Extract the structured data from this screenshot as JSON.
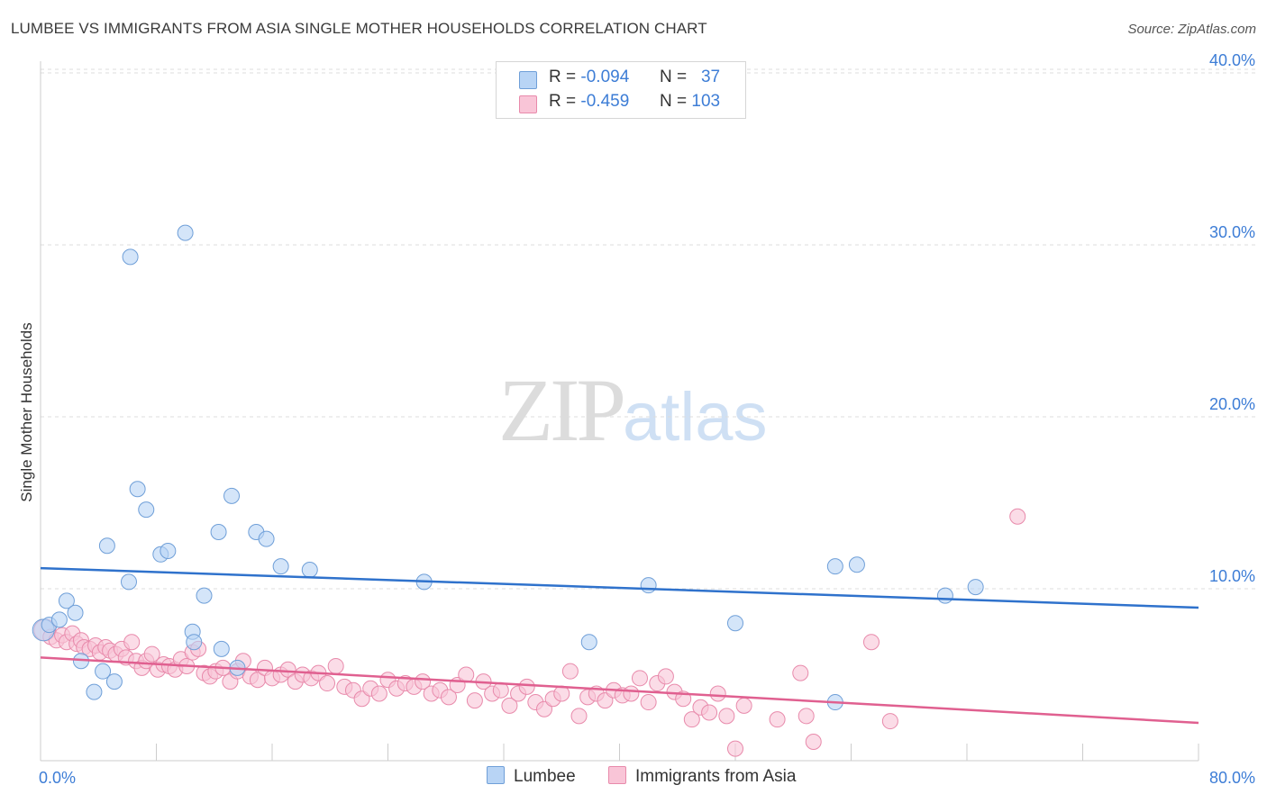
{
  "header": {
    "title": "LUMBEE VS IMMIGRANTS FROM ASIA SINGLE MOTHER HOUSEHOLDS CORRELATION CHART",
    "source": "Source: ZipAtlas.com"
  },
  "watermark": {
    "zip": "ZIP",
    "atlas": "atlas"
  },
  "legend": {
    "rows": [
      {
        "r_label": "R =",
        "r_value": "-0.094",
        "n_label": "N =",
        "n_value": "37",
        "color": "#b8d4f5"
      },
      {
        "r_label": "R =",
        "r_value": "-0.459",
        "n_label": "N =",
        "n_value": "103",
        "color": "#f9c5d7"
      }
    ]
  },
  "bottom_legend": {
    "lumbee": "Lumbee",
    "asia": "Immigrants from Asia"
  },
  "chart_data": {
    "type": "scatter",
    "title": "LUMBEE VS IMMIGRANTS FROM ASIA SINGLE MOTHER HOUSEHOLDS CORRELATION CHART",
    "ylabel": "Single Mother Households",
    "xlabel": "",
    "xlim": [
      0,
      80
    ],
    "ylim": [
      0,
      42
    ],
    "x_tick_labels": [
      "0.0%",
      "80.0%"
    ],
    "y_ticks": [
      10,
      20,
      30,
      40
    ],
    "y_tick_labels": [
      "10.0%",
      "20.0%",
      "30.0%",
      "40.0%"
    ],
    "grid": true,
    "colors": {
      "lumbee_fill": "#b8d4f5",
      "lumbee_stroke": "#6f9fd8",
      "lumbee_line": "#2f72cc",
      "asia_fill": "#f9c5d7",
      "asia_stroke": "#e88aab",
      "asia_line": "#e06090",
      "axis_text": "#3d7dd6"
    },
    "series": [
      {
        "name": "Lumbee",
        "trend": [
          [
            0,
            11.2
          ],
          [
            80,
            8.9
          ]
        ],
        "points": [
          [
            0.2,
            7.6
          ],
          [
            0.6,
            7.9
          ],
          [
            1.3,
            8.2
          ],
          [
            1.8,
            9.3
          ],
          [
            2.4,
            8.6
          ],
          [
            2.8,
            5.8
          ],
          [
            3.7,
            4.0
          ],
          [
            4.3,
            5.2
          ],
          [
            4.6,
            12.5
          ],
          [
            5.1,
            4.6
          ],
          [
            6.1,
            10.4
          ],
          [
            6.2,
            29.3
          ],
          [
            6.7,
            15.8
          ],
          [
            7.3,
            14.6
          ],
          [
            8.3,
            12.0
          ],
          [
            8.8,
            12.2
          ],
          [
            10.0,
            30.7
          ],
          [
            10.5,
            7.5
          ],
          [
            10.6,
            6.9
          ],
          [
            11.3,
            9.6
          ],
          [
            12.3,
            13.3
          ],
          [
            12.5,
            6.5
          ],
          [
            13.2,
            15.4
          ],
          [
            13.6,
            5.4
          ],
          [
            14.9,
            13.3
          ],
          [
            15.6,
            12.9
          ],
          [
            16.6,
            11.3
          ],
          [
            18.6,
            11.1
          ],
          [
            26.5,
            10.4
          ],
          [
            37.9,
            6.9
          ],
          [
            42.0,
            10.2
          ],
          [
            48.0,
            8.0
          ],
          [
            54.9,
            3.4
          ],
          [
            54.9,
            11.3
          ],
          [
            56.4,
            11.4
          ],
          [
            62.5,
            9.6
          ],
          [
            64.6,
            10.1
          ]
        ]
      },
      {
        "name": "Immigrants from Asia",
        "trend": [
          [
            0,
            6.0
          ],
          [
            80,
            2.2
          ]
        ],
        "points": [
          [
            0.3,
            7.6
          ],
          [
            0.7,
            7.2
          ],
          [
            1.1,
            7.0
          ],
          [
            1.5,
            7.3
          ],
          [
            1.8,
            6.9
          ],
          [
            2.2,
            7.4
          ],
          [
            2.5,
            6.8
          ],
          [
            2.8,
            7.0
          ],
          [
            3.0,
            6.6
          ],
          [
            3.4,
            6.5
          ],
          [
            3.8,
            6.7
          ],
          [
            4.1,
            6.3
          ],
          [
            4.5,
            6.6
          ],
          [
            4.8,
            6.4
          ],
          [
            5.2,
            6.2
          ],
          [
            5.6,
            6.5
          ],
          [
            5.9,
            6.0
          ],
          [
            6.3,
            6.9
          ],
          [
            6.6,
            5.8
          ],
          [
            7.0,
            5.4
          ],
          [
            7.3,
            5.8
          ],
          [
            7.7,
            6.2
          ],
          [
            8.1,
            5.3
          ],
          [
            8.5,
            5.6
          ],
          [
            8.9,
            5.5
          ],
          [
            9.3,
            5.3
          ],
          [
            9.7,
            5.9
          ],
          [
            10.1,
            5.5
          ],
          [
            10.5,
            6.3
          ],
          [
            10.9,
            6.5
          ],
          [
            11.3,
            5.1
          ],
          [
            11.7,
            4.9
          ],
          [
            12.1,
            5.2
          ],
          [
            12.6,
            5.4
          ],
          [
            13.1,
            4.6
          ],
          [
            13.6,
            5.2
          ],
          [
            14.0,
            5.8
          ],
          [
            14.5,
            4.9
          ],
          [
            15.0,
            4.7
          ],
          [
            15.5,
            5.4
          ],
          [
            16.0,
            4.8
          ],
          [
            16.6,
            5.0
          ],
          [
            17.1,
            5.3
          ],
          [
            17.6,
            4.6
          ],
          [
            18.1,
            5.0
          ],
          [
            18.7,
            4.8
          ],
          [
            19.2,
            5.1
          ],
          [
            19.8,
            4.5
          ],
          [
            20.4,
            5.5
          ],
          [
            21.0,
            4.3
          ],
          [
            21.6,
            4.1
          ],
          [
            22.2,
            3.6
          ],
          [
            22.8,
            4.2
          ],
          [
            23.4,
            3.9
          ],
          [
            24.0,
            4.7
          ],
          [
            24.6,
            4.2
          ],
          [
            25.2,
            4.5
          ],
          [
            25.8,
            4.3
          ],
          [
            26.4,
            4.6
          ],
          [
            27.0,
            3.9
          ],
          [
            27.6,
            4.1
          ],
          [
            28.2,
            3.7
          ],
          [
            28.8,
            4.4
          ],
          [
            29.4,
            5.0
          ],
          [
            30.0,
            3.5
          ],
          [
            30.6,
            4.6
          ],
          [
            31.2,
            3.9
          ],
          [
            31.8,
            4.1
          ],
          [
            32.4,
            3.2
          ],
          [
            33.0,
            3.9
          ],
          [
            33.6,
            4.3
          ],
          [
            34.2,
            3.4
          ],
          [
            34.8,
            3.0
          ],
          [
            35.4,
            3.6
          ],
          [
            36.0,
            3.9
          ],
          [
            36.6,
            5.2
          ],
          [
            37.2,
            2.6
          ],
          [
            37.8,
            3.7
          ],
          [
            38.4,
            3.9
          ],
          [
            39.0,
            3.5
          ],
          [
            39.6,
            4.1
          ],
          [
            40.2,
            3.8
          ],
          [
            40.8,
            3.9
          ],
          [
            41.4,
            4.8
          ],
          [
            42.0,
            3.4
          ],
          [
            42.6,
            4.5
          ],
          [
            43.2,
            4.9
          ],
          [
            43.8,
            4.0
          ],
          [
            44.4,
            3.6
          ],
          [
            45.0,
            2.4
          ],
          [
            45.6,
            3.1
          ],
          [
            46.2,
            2.8
          ],
          [
            46.8,
            3.9
          ],
          [
            47.4,
            2.6
          ],
          [
            48.0,
            0.7
          ],
          [
            48.6,
            3.2
          ],
          [
            50.9,
            2.4
          ],
          [
            52.5,
            5.1
          ],
          [
            52.9,
            2.6
          ],
          [
            53.4,
            1.1
          ],
          [
            57.4,
            6.9
          ],
          [
            58.7,
            2.3
          ],
          [
            67.5,
            14.2
          ]
        ]
      }
    ]
  }
}
